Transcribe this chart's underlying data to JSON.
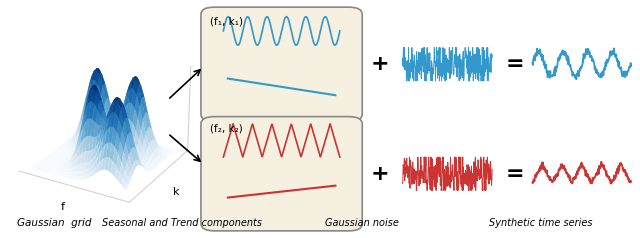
{
  "labels": {
    "gaussian_grid": "Gaussian  grid",
    "seasonal_trend": "Seasonal and Trend components",
    "gaussian_noise": "Gaussian noise",
    "synthetic_ts": "Synthetic time series"
  },
  "blue_color": "#3399CC",
  "red_color": "#CC3333",
  "box_bg": "#F5F0E0",
  "label1": "(f₁, k₁)",
  "label2": "(f₂, k₂)",
  "bg_color": "#FFFFFF"
}
